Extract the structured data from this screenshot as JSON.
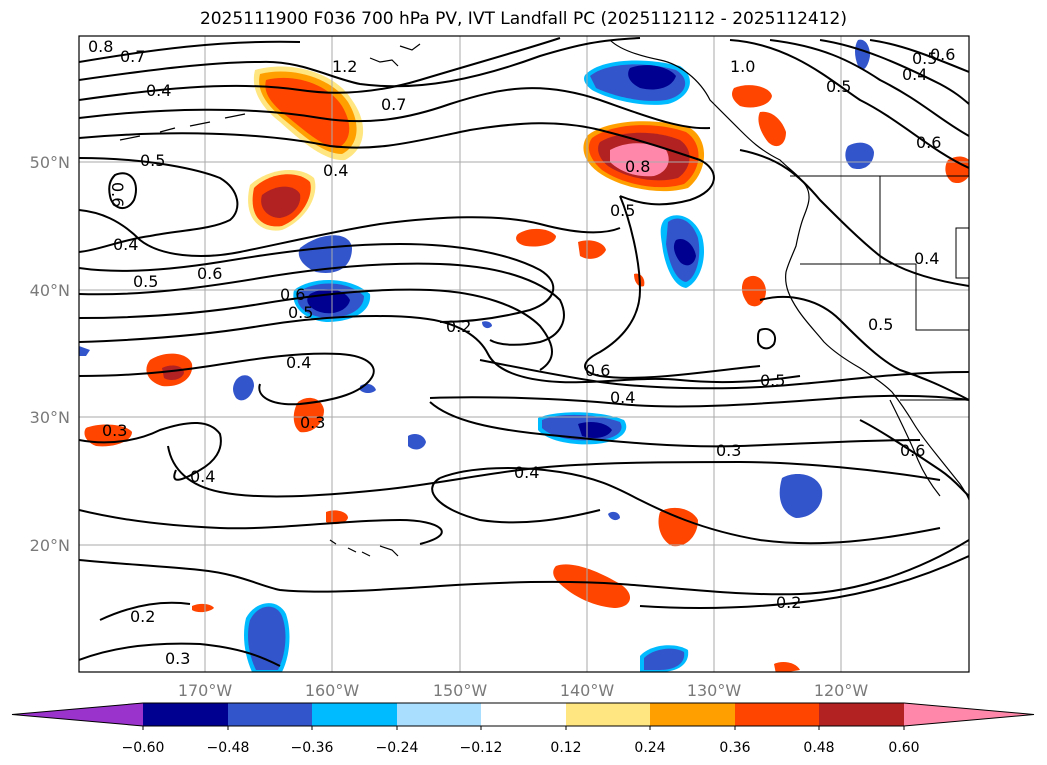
{
  "title": "2025111900 F036 700 hPa PV, IVT Landfall PC (2025112112 - 2025112412)",
  "map": {
    "lon_labels": [
      "170°W",
      "160°W",
      "150°W",
      "140°W",
      "130°W",
      "120°W"
    ],
    "lat_labels": [
      "50°N",
      "40°N",
      "30°N",
      "20°N"
    ],
    "contour_labels": [
      "0.8",
      "0.7",
      "1.2",
      "0.4",
      "0.7",
      "0.6",
      "0.5",
      "0.4",
      "0.6",
      "0.5",
      "0.4",
      "0.6",
      "0.5",
      "0.4",
      "0.2",
      "0.6",
      "0.4",
      "0.5",
      "0.3",
      "0.4",
      "0.3",
      "0.4",
      "0.3",
      "0.6",
      "0.2",
      "0.5",
      "0.2",
      "0.3",
      "0.8",
      "0.5",
      "1.0",
      "0.5",
      "0.4",
      "0.6",
      "0.5",
      "0.4",
      "0.6"
    ]
  },
  "colorbar": {
    "ticks": [
      "−0.60",
      "−0.48",
      "−0.36",
      "−0.24",
      "−0.12",
      "0.12",
      "0.24",
      "0.36",
      "0.48",
      "0.60"
    ],
    "colors": [
      "#9933cc",
      "#000090",
      "#3355cc",
      "#00bbff",
      "#aadeff",
      "#ffffff",
      "#ffe680",
      "#ffa000",
      "#ff4500",
      "#b22222",
      "#ff88aa"
    ]
  }
}
